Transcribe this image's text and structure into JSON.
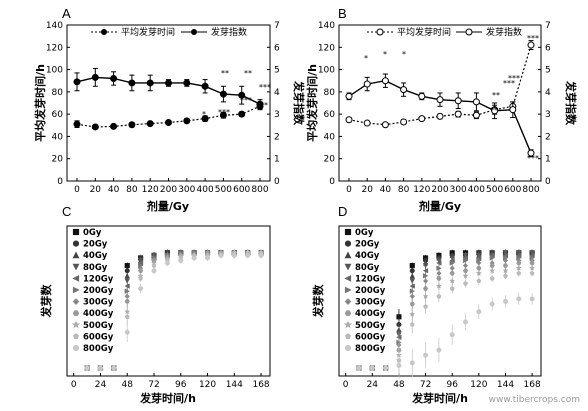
{
  "figure": {
    "watermark": "www.tibercrops.com"
  },
  "chart_data": [
    {
      "panel": "A",
      "type": "line",
      "x": [
        "0",
        "20",
        "40",
        "80",
        "120",
        "200",
        "300",
        "400",
        "500",
        "600",
        "800"
      ],
      "xlabel": "剂量/Gy",
      "ylabel": "平均发芽时间/h",
      "y2label": "发芽指数",
      "ylim": [
        0,
        140
      ],
      "yticks": [
        0,
        20,
        40,
        60,
        80,
        100,
        120,
        140
      ],
      "y2lim": [
        0,
        7
      ],
      "y2ticks": [
        0,
        1,
        2,
        3,
        4,
        5,
        6,
        7
      ],
      "legend": [
        "平均发芽时间",
        "发芽指数"
      ],
      "legend_position": "top-center",
      "series": [
        {
          "name": "平均发芽时间",
          "axis": "left",
          "style": "dotted-filled",
          "values": [
            51,
            48.5,
            49,
            50.5,
            51.5,
            52.5,
            54,
            56,
            59,
            60,
            67
          ],
          "errors": [
            3,
            1.5,
            1.5,
            2,
            1.5,
            1.5,
            2,
            2.5,
            2.5,
            2,
            3
          ]
        },
        {
          "name": "发芽指数",
          "axis": "right",
          "style": "solid-filled",
          "values": [
            4.45,
            4.65,
            4.6,
            4.4,
            4.4,
            4.4,
            4.4,
            4.25,
            3.9,
            3.85,
            3.45
          ],
          "errors": [
            0.4,
            0.4,
            0.3,
            0.35,
            0.35,
            0.15,
            0.15,
            0.3,
            0.35,
            0.4,
            0.2
          ]
        }
      ],
      "annotations": [
        "*",
        "**",
        "**",
        "***",
        "***",
        "***",
        "***"
      ]
    },
    {
      "panel": "B",
      "type": "line",
      "x": [
        "0",
        "20",
        "40",
        "80",
        "120",
        "200",
        "300",
        "400",
        "500",
        "600",
        "800"
      ],
      "xlabel": "剂量/Gy",
      "ylabel": "平均发芽时间/h",
      "y2label": "发芽指数",
      "ylim": [
        0,
        140
      ],
      "yticks": [
        0,
        20,
        40,
        60,
        80,
        100,
        120,
        140
      ],
      "y2lim": [
        0,
        7
      ],
      "y2ticks": [
        0,
        1,
        2,
        3,
        4,
        5,
        6,
        7
      ],
      "legend": [
        "平均发芽时间",
        "发芽指数"
      ],
      "legend_position": "top-center",
      "series": [
        {
          "name": "平均发芽时间",
          "axis": "left",
          "style": "dotted-open",
          "values": [
            55,
            52,
            50.5,
            53,
            56,
            58,
            60,
            59,
            64,
            67,
            122
          ],
          "errors": [
            2,
            1.5,
            1.5,
            2,
            1.5,
            2,
            2.5,
            3,
            4,
            4,
            4
          ]
        },
        {
          "name": "发芽指数",
          "axis": "right",
          "style": "solid-open",
          "values": [
            3.8,
            4.35,
            4.5,
            4.1,
            3.8,
            3.65,
            3.6,
            3.55,
            3.15,
            3.2,
            1.25
          ],
          "errors": [
            0.15,
            0.3,
            0.3,
            0.3,
            0.15,
            0.3,
            0.35,
            0.4,
            0.35,
            0.35,
            0.15
          ]
        }
      ],
      "annotations": [
        "*",
        "*",
        "*",
        "**",
        "**",
        "***",
        "***",
        "***",
        "***"
      ]
    },
    {
      "panel": "C",
      "type": "scatter",
      "xlabel": "发芽时间/h",
      "ylabel": "发芽数",
      "xticks": [
        0,
        24,
        48,
        72,
        96,
        120,
        144,
        168
      ],
      "xlim": [
        -6,
        176
      ],
      "ylim": [
        0,
        50
      ],
      "time_points": [
        12,
        24,
        36,
        48,
        60,
        72,
        84,
        96,
        108,
        120,
        132,
        144,
        156,
        168
      ],
      "legend": [
        "0Gy",
        "20Gy",
        "40Gy",
        "80Gy",
        "120Gy",
        "200Gy",
        "300Gy",
        "400Gy",
        "500Gy",
        "600Gy",
        "800Gy"
      ],
      "series": [
        {
          "name": "0Gy",
          "values": [
            0,
            0,
            0,
            40,
            43,
            44,
            45,
            45,
            45,
            45,
            45,
            45,
            45,
            45
          ]
        },
        {
          "name": "20Gy",
          "values": [
            0,
            0,
            0,
            38,
            43,
            44,
            45,
            45,
            45,
            45,
            45,
            45,
            45,
            45
          ]
        },
        {
          "name": "40Gy",
          "values": [
            0,
            0,
            0,
            36,
            42,
            44,
            45,
            45,
            45,
            45,
            45,
            45,
            45,
            45
          ]
        },
        {
          "name": "80Gy",
          "values": [
            0,
            0,
            0,
            34,
            42,
            44,
            44,
            45,
            45,
            45,
            45,
            45,
            45,
            45
          ]
        },
        {
          "name": "120Gy",
          "values": [
            0,
            0,
            0,
            32,
            41,
            43,
            44,
            45,
            45,
            45,
            45,
            45,
            45,
            45
          ]
        },
        {
          "name": "200Gy",
          "values": [
            0,
            0,
            0,
            30,
            40,
            43,
            44,
            45,
            45,
            45,
            45,
            45,
            45,
            45
          ]
        },
        {
          "name": "300Gy",
          "values": [
            0,
            0,
            0,
            28,
            39,
            42,
            44,
            44,
            45,
            45,
            45,
            45,
            45,
            45
          ]
        },
        {
          "name": "400Gy",
          "values": [
            0,
            0,
            0,
            26,
            38,
            42,
            43,
            44,
            44,
            45,
            45,
            45,
            45,
            45
          ]
        },
        {
          "name": "500Gy",
          "values": [
            0,
            0,
            0,
            22,
            36,
            41,
            43,
            44,
            44,
            44,
            45,
            45,
            45,
            45
          ]
        },
        {
          "name": "600Gy",
          "values": [
            0,
            0,
            0,
            20,
            35,
            40,
            42,
            43,
            44,
            44,
            44,
            45,
            45,
            45
          ]
        },
        {
          "name": "800Gy",
          "values": [
            0,
            0,
            0,
            14,
            31,
            38,
            41,
            42,
            43,
            43,
            44,
            44,
            44,
            44
          ]
        }
      ]
    },
    {
      "panel": "D",
      "type": "scatter",
      "xlabel": "发芽时间/h",
      "ylabel": "发芽数",
      "xticks": [
        0,
        24,
        48,
        72,
        96,
        120,
        144,
        168
      ],
      "xlim": [
        -6,
        176
      ],
      "ylim": [
        0,
        50
      ],
      "time_points": [
        12,
        24,
        36,
        48,
        60,
        72,
        84,
        96,
        108,
        120,
        132,
        144,
        156,
        168
      ],
      "legend": [
        "0Gy",
        "20Gy",
        "40Gy",
        "80Gy",
        "120Gy",
        "200Gy",
        "300Gy",
        "400Gy",
        "500Gy",
        "600Gy",
        "800Gy"
      ],
      "series": [
        {
          "name": "0Gy",
          "values": [
            0,
            0,
            0,
            20,
            40,
            43,
            44,
            45,
            45,
            45,
            45,
            45,
            45,
            45
          ]
        },
        {
          "name": "20Gy",
          "values": [
            0,
            0,
            0,
            17,
            38,
            42,
            43,
            44,
            44,
            45,
            45,
            45,
            45,
            45
          ]
        },
        {
          "name": "40Gy",
          "values": [
            0,
            0,
            0,
            15,
            36,
            41,
            43,
            44,
            44,
            44,
            45,
            45,
            45,
            45
          ]
        },
        {
          "name": "80Gy",
          "values": [
            0,
            0,
            0,
            13,
            34,
            40,
            42,
            43,
            44,
            44,
            44,
            45,
            45,
            45
          ]
        },
        {
          "name": "120Gy",
          "values": [
            0,
            0,
            0,
            12,
            32,
            38,
            41,
            42,
            43,
            43,
            44,
            44,
            44,
            44
          ]
        },
        {
          "name": "200Gy",
          "values": [
            0,
            0,
            0,
            10,
            30,
            36,
            39,
            41,
            42,
            42,
            43,
            43,
            43,
            43
          ]
        },
        {
          "name": "300Gy",
          "values": [
            0,
            0,
            0,
            9,
            28,
            34,
            37,
            39,
            40,
            41,
            41,
            42,
            42,
            42
          ]
        },
        {
          "name": "400Gy",
          "values": [
            0,
            0,
            0,
            7,
            25,
            31,
            35,
            37,
            38,
            39,
            40,
            40,
            41,
            41
          ]
        },
        {
          "name": "500Gy",
          "values": [
            0,
            0,
            0,
            5,
            21,
            28,
            32,
            34,
            36,
            37,
            38,
            38,
            39,
            39
          ]
        },
        {
          "name": "600Gy",
          "values": [
            0,
            0,
            0,
            3,
            17,
            24,
            28,
            31,
            33,
            34,
            35,
            36,
            37,
            37
          ]
        },
        {
          "name": "800Gy",
          "values": [
            0,
            0,
            0,
            1,
            2,
            5,
            7,
            13,
            18,
            22,
            25,
            26,
            27,
            27
          ]
        }
      ]
    }
  ]
}
